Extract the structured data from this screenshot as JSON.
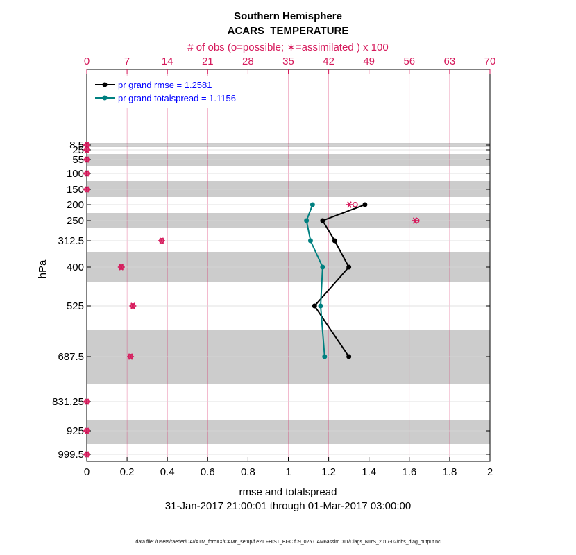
{
  "chart_data": {
    "type": "line",
    "title": "Southern Hemisphere",
    "subtitle": "ACARS_TEMPERATURE",
    "top_axis": {
      "label": "# of obs (o=possible; ∗=assimilated ) x 100",
      "range": [
        0,
        70
      ],
      "ticks": [
        0,
        7,
        14,
        21,
        28,
        35,
        42,
        49,
        56,
        63,
        70
      ],
      "color": "#d6195b"
    },
    "x_axis": {
      "label": "rmse and totalspread",
      "range": [
        0,
        2
      ],
      "ticks": [
        "0",
        "0.2",
        "0.4",
        "0.6",
        "0.8",
        "1",
        "1.2",
        "1.4",
        "1.6",
        "1.8",
        "2"
      ]
    },
    "y_axis": {
      "label": "hPa",
      "ticks": [
        "8.5",
        "25",
        "55",
        "100",
        "150",
        "200",
        "250",
        "312.5",
        "400",
        "525",
        "687.5",
        "831.25",
        "925",
        "999.5"
      ],
      "inverted": true
    },
    "date_range": "31-Jan-2017 21:00:01 through 01-Mar-2017 03:00:00",
    "footer": "data file: /Users/raeder/DAI/ATM_forcXX/CAM6_setup/f.e21.FHIST_BGC.f09_025.CAM6assim.011/Diags_NTrS_2017-02/obs_diag_output.nc",
    "legend_position": "top-left",
    "grid": true,
    "series": [
      {
        "name": "pr grand rmse = 1.2581",
        "color": "#000000",
        "points": [
          {
            "level": "200",
            "value": 1.38
          },
          {
            "level": "250",
            "value": 1.17
          },
          {
            "level": "312.5",
            "value": 1.23
          },
          {
            "level": "400",
            "value": 1.3
          },
          {
            "level": "525",
            "value": 1.13
          },
          {
            "level": "687.5",
            "value": 1.3
          }
        ]
      },
      {
        "name": "pr grand totalspread = 1.1156",
        "color": "#008080",
        "points": [
          {
            "level": "200",
            "value": 1.12
          },
          {
            "level": "250",
            "value": 1.09
          },
          {
            "level": "312.5",
            "value": 1.11
          },
          {
            "level": "400",
            "value": 1.17
          },
          {
            "level": "525",
            "value": 1.16
          },
          {
            "level": "687.5",
            "value": 1.18
          }
        ]
      }
    ],
    "obs_counts": [
      {
        "level": "8.5",
        "possible": 0,
        "assimilated": 0
      },
      {
        "level": "25",
        "possible": 0,
        "assimilated": 0
      },
      {
        "level": "55",
        "possible": 0,
        "assimilated": 0
      },
      {
        "level": "100",
        "possible": 0,
        "assimilated": 0
      },
      {
        "level": "150",
        "possible": 0,
        "assimilated": 0
      },
      {
        "level": "200",
        "possible": 46.6,
        "assimilated": 45.6
      },
      {
        "level": "250",
        "possible": 57.3,
        "assimilated": 57.0
      },
      {
        "level": "312.5",
        "possible": 13.0,
        "assimilated": 13.0
      },
      {
        "level": "400",
        "possible": 6.0,
        "assimilated": 6.0
      },
      {
        "level": "525",
        "possible": 8.0,
        "assimilated": 8.0
      },
      {
        "level": "687.5",
        "possible": 7.6,
        "assimilated": 7.6
      },
      {
        "level": "831.25",
        "possible": 0,
        "assimilated": 0
      },
      {
        "level": "925",
        "possible": 0,
        "assimilated": 0
      },
      {
        "level": "999.5",
        "possible": 0,
        "assimilated": 0
      }
    ]
  }
}
